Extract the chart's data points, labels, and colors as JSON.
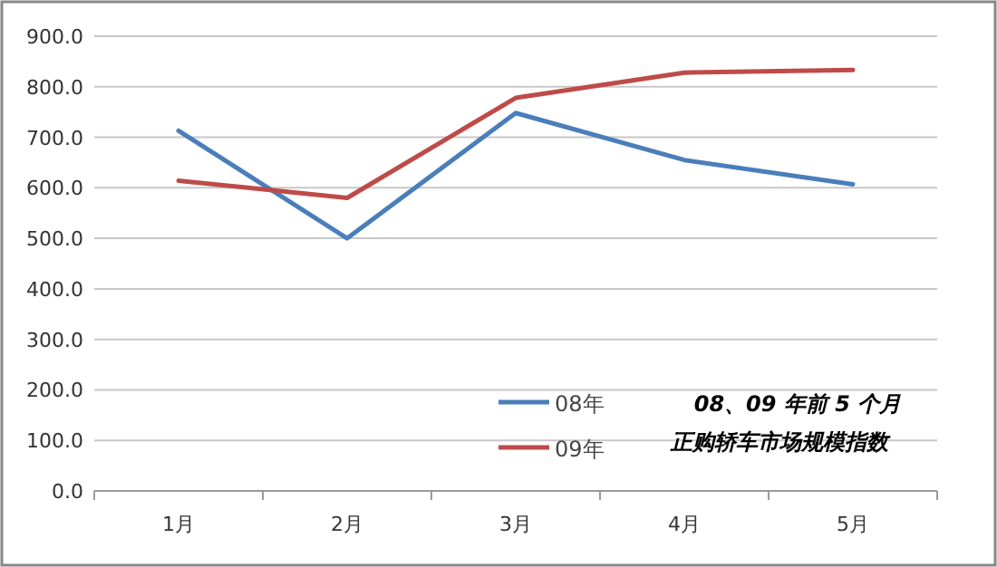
{
  "chart_data": {
    "type": "line",
    "title": "08、09 年前 5 个月",
    "subtitle": "正购轿车市场规模指数",
    "categories": [
      "1月",
      "2月",
      "3月",
      "4月",
      "5月"
    ],
    "series": [
      {
        "name": "08年",
        "color": "#4a7ebb",
        "values": [
          713,
          500,
          748,
          655,
          607
        ]
      },
      {
        "name": "09年",
        "color": "#be4b48",
        "values": [
          614,
          580,
          778,
          828,
          833
        ]
      }
    ],
    "ylim": [
      0,
      900
    ],
    "yticks": [
      {
        "value": 0,
        "label": "0.0"
      },
      {
        "value": 100,
        "label": "100.0"
      },
      {
        "value": 200,
        "label": "200.0"
      },
      {
        "value": 300,
        "label": "300.0"
      },
      {
        "value": 400,
        "label": "400.0"
      },
      {
        "value": 500,
        "label": "500.0"
      },
      {
        "value": 600,
        "label": "600.0"
      },
      {
        "value": 700,
        "label": "700.0"
      },
      {
        "value": 800,
        "label": "800.0"
      },
      {
        "value": 900,
        "label": "900.0"
      }
    ],
    "grid": "y",
    "legend": "bottom right",
    "marker": "none",
    "line_style": "solid"
  }
}
